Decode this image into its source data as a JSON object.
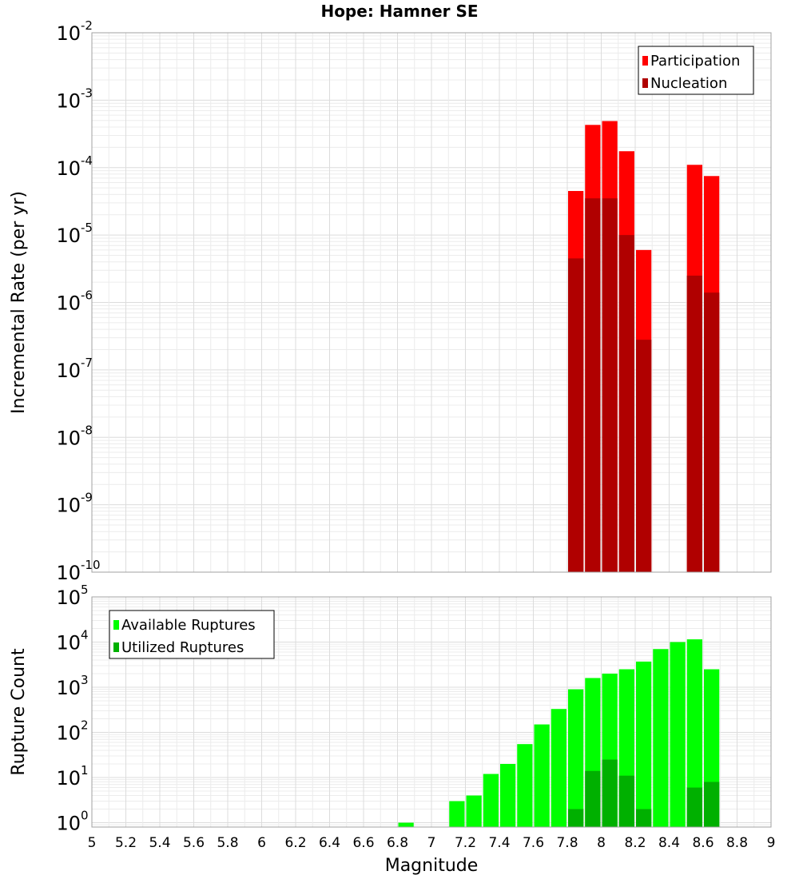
{
  "title": "Hope: Hamner SE",
  "chart_data": [
    {
      "type": "bar",
      "ylabel": "Incremental Rate (per yr)",
      "xlabel": "",
      "xlim": [
        5,
        9
      ],
      "ylim": [
        1e-10,
        0.01
      ],
      "yscale": "log",
      "grid": true,
      "legend": "top-right",
      "y_tick_exponents": [
        -10,
        -9,
        -8,
        -7,
        -6,
        -5,
        -4,
        -3,
        -2
      ],
      "x": [
        7.85,
        7.95,
        8.05,
        8.15,
        8.25,
        8.55,
        8.65
      ],
      "series": [
        {
          "name": "Participation",
          "color": "#ff0000",
          "values": [
            4.5e-05,
            0.00043,
            0.00049,
            0.000175,
            6e-06,
            0.00011,
            7.5e-05
          ]
        },
        {
          "name": "Nucleation",
          "color": "#b00000",
          "values": [
            4.5e-06,
            3.5e-05,
            3.5e-05,
            1e-05,
            2.8e-07,
            2.5e-06,
            1.4e-06
          ]
        }
      ]
    },
    {
      "type": "bar",
      "ylabel": "Rupture Count",
      "xlabel": "Magnitude",
      "xlim": [
        5,
        9
      ],
      "ylim": [
        0.8,
        100000.0
      ],
      "yscale": "log",
      "grid": true,
      "legend": "top-left",
      "y_tick_exponents": [
        0,
        1,
        2,
        3,
        4,
        5
      ],
      "x_ticks": [
        "5",
        "5.2",
        "5.4",
        "5.6",
        "5.8",
        "6",
        "6.2",
        "6.4",
        "6.6",
        "6.8",
        "7",
        "7.2",
        "7.4",
        "7.6",
        "7.8",
        "8",
        "8.2",
        "8.4",
        "8.6",
        "8.8",
        "9"
      ],
      "x": [
        6.85,
        7.15,
        7.25,
        7.35,
        7.45,
        7.55,
        7.65,
        7.75,
        7.85,
        7.95,
        8.05,
        8.15,
        8.25,
        8.35,
        8.45,
        8.55,
        8.65
      ],
      "series": [
        {
          "name": "Available Ruptures",
          "color": "#00ff00",
          "values": [
            1,
            3,
            4,
            12,
            20,
            55,
            150,
            330,
            900,
            1600,
            2000,
            2500,
            3700,
            7000,
            10000,
            11500,
            2500
          ]
        },
        {
          "name": "Utilized Ruptures",
          "color": "#00b000",
          "values": [
            0,
            0,
            0,
            0,
            0,
            0,
            0,
            0,
            2,
            14,
            25,
            11,
            2,
            0,
            0,
            6,
            8
          ]
        }
      ]
    }
  ]
}
